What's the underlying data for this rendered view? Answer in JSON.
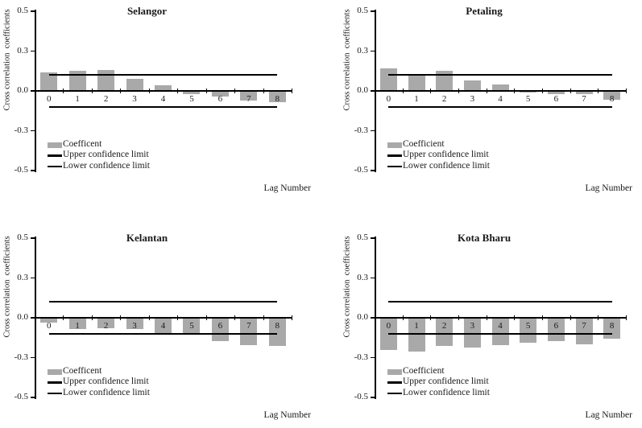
{
  "figure": {
    "background": "#ffffff",
    "text_color": "#1a1a1a",
    "bar_color": "#a9a9a9",
    "line_color": "#000000"
  },
  "chart_data": [
    {
      "type": "bar",
      "title": "Selangor",
      "xlabel": "Lag Number",
      "ylabel": "Cross correlation  coefficients",
      "categories": [
        0,
        1,
        2,
        3,
        4,
        5,
        6,
        7,
        8
      ],
      "values": [
        0.14,
        0.15,
        0.16,
        0.09,
        0.04,
        -0.02,
        -0.04,
        -0.07,
        -0.08
      ],
      "upper_confidence_limit": 0.12,
      "lower_confidence_limit": -0.12,
      "legend": [
        "Coefficent",
        "Upper confidence limit",
        "Lower confidence limit"
      ],
      "legend_position": "bottom-left",
      "ylim": [
        -0.5,
        0.5
      ],
      "ytick_labels": [
        "0.5",
        "0.3",
        "0.0",
        "-0.3",
        "-0.5"
      ],
      "ytick_spacing": "equal",
      "grid": false,
      "bar_color": "#a9a9a9"
    },
    {
      "type": "bar",
      "title": "Petaling",
      "xlabel": "Lag Number",
      "ylabel": "Cross correlation  coefficients",
      "categories": [
        0,
        1,
        2,
        3,
        4,
        5,
        6,
        7,
        8
      ],
      "values": [
        0.17,
        0.13,
        0.15,
        0.08,
        0.05,
        -0.01,
        -0.02,
        -0.02,
        -0.06
      ],
      "upper_confidence_limit": 0.12,
      "lower_confidence_limit": -0.12,
      "legend": [
        "Coefficient",
        "Upper confidence limit",
        "Lower confidence limit"
      ],
      "legend_position": "bottom-left",
      "ylim": [
        -0.5,
        0.5
      ],
      "ytick_labels": [
        "0.5",
        "0.3",
        "0.0",
        "-0.3",
        "-0.5"
      ],
      "ytick_spacing": "equal",
      "grid": false,
      "bar_color": "#a9a9a9"
    },
    {
      "type": "bar",
      "title": "Kelantan",
      "xlabel": "Lag Number",
      "ylabel": "Cross correlation  coefficients",
      "categories": [
        0,
        1,
        2,
        3,
        4,
        5,
        6,
        7,
        8
      ],
      "values": [
        -0.03,
        -0.08,
        -0.075,
        -0.08,
        -0.115,
        -0.125,
        -0.17,
        -0.2,
        -0.21
      ],
      "upper_confidence_limit": 0.12,
      "lower_confidence_limit": -0.12,
      "legend": [
        "Coefficent",
        "Upper confidence limit",
        "Lower confidence limit"
      ],
      "legend_position": "bottom-left",
      "ylim": [
        -0.5,
        0.5
      ],
      "ytick_labels": [
        "0.5",
        "0.3",
        "0.0",
        "-0.3",
        "-0.5"
      ],
      "ytick_spacing": "equal",
      "grid": false,
      "bar_color": "#a9a9a9"
    },
    {
      "type": "bar",
      "title": "Kota Bharu",
      "xlabel": "Lag Number",
      "ylabel": "Cross correlation  coefficients",
      "categories": [
        0,
        1,
        2,
        3,
        4,
        5,
        6,
        7,
        8
      ],
      "values": [
        -0.24,
        -0.25,
        -0.21,
        -0.22,
        -0.2,
        -0.185,
        -0.17,
        -0.195,
        -0.155
      ],
      "upper_confidence_limit": 0.12,
      "lower_confidence_limit": -0.12,
      "legend": [
        "Coefficient",
        "Upper confidence limit",
        "Lower confidence limit"
      ],
      "legend_position": "bottom-left",
      "ylim": [
        -0.5,
        0.5
      ],
      "ytick_labels": [
        "0.5",
        "0.3",
        "0.0",
        "-0.3",
        "-0.5"
      ],
      "ytick_spacing": "equal",
      "grid": false,
      "bar_color": "#a9a9a9"
    }
  ]
}
